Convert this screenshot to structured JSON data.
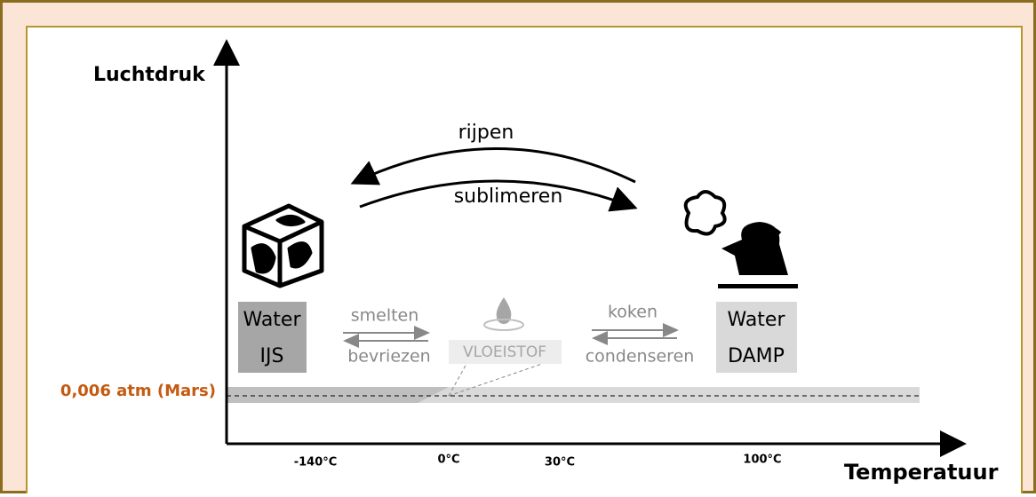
{
  "axes": {
    "y_label": "Luchtdruk",
    "x_label": "Temperatuur"
  },
  "temperature_ticks": [
    "-140°C",
    "0°C",
    "30°C",
    "100°C"
  ],
  "pressure_line": {
    "label": "0,006 atm (Mars)"
  },
  "states": {
    "ice": {
      "line1": "Water",
      "line2": "IJS"
    },
    "liquid": {
      "label": "VLOEISTOF"
    },
    "vapor": {
      "line1": "Water",
      "line2": "DAMP"
    }
  },
  "transitions": {
    "deposition": "rijpen",
    "sublimation": "sublimeren",
    "melting": "smelten",
    "freezing": "bevriezen",
    "boiling": "koken",
    "condensation": "condenseren"
  }
}
